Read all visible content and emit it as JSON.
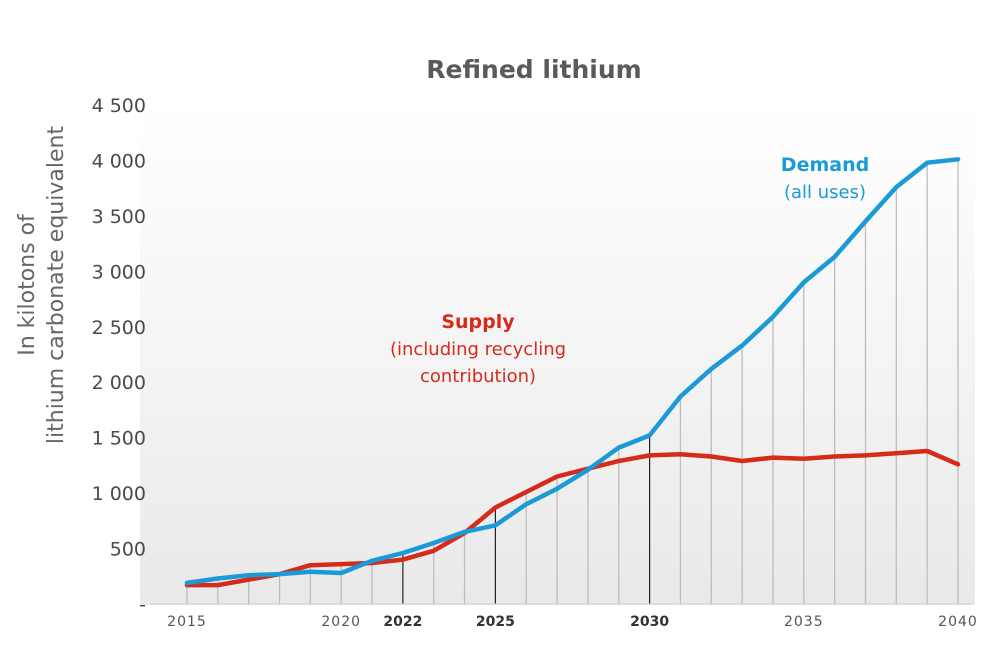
{
  "chart_data": {
    "type": "line",
    "title": "Refined lithium",
    "ylabel_lines": [
      "In kilotons of",
      "lithium carbonate equivalent"
    ],
    "ylim": [
      0,
      4500
    ],
    "yticks": [
      {
        "value": 0,
        "label": "-"
      },
      {
        "value": 500,
        "label": "500"
      },
      {
        "value": 1000,
        "label": "1 000"
      },
      {
        "value": 1500,
        "label": "1 500"
      },
      {
        "value": 2000,
        "label": "2 000"
      },
      {
        "value": 2500,
        "label": "2 500"
      },
      {
        "value": 3000,
        "label": "3 000"
      },
      {
        "value": 3500,
        "label": "3 500"
      },
      {
        "value": 4000,
        "label": "4 000"
      },
      {
        "value": 4500,
        "label": "4 500"
      }
    ],
    "xlim": [
      2015,
      2040
    ],
    "xticks": [
      {
        "value": 2015,
        "label": "2015",
        "bold": false
      },
      {
        "value": 2020,
        "label": "2020",
        "bold": false
      },
      {
        "value": 2022,
        "label": "2022",
        "bold": true
      },
      {
        "value": 2025,
        "label": "2025",
        "bold": true
      },
      {
        "value": 2030,
        "label": "2030",
        "bold": true
      },
      {
        "value": 2035,
        "label": "2035",
        "bold": false
      },
      {
        "value": 2040,
        "label": "2040",
        "bold": false
      }
    ],
    "highlight_years": [
      2022,
      2025,
      2030
    ],
    "x": [
      2015,
      2016,
      2017,
      2018,
      2019,
      2020,
      2021,
      2022,
      2023,
      2024,
      2025,
      2026,
      2027,
      2028,
      2029,
      2030,
      2031,
      2032,
      2033,
      2034,
      2035,
      2036,
      2037,
      2038,
      2039,
      2040
    ],
    "series": [
      {
        "name": "Demand",
        "note": "(all uses)",
        "color": "#1a9ad6",
        "values": [
          190,
          230,
          260,
          270,
          290,
          280,
          390,
          460,
          550,
          650,
          710,
          900,
          1040,
          1210,
          1410,
          1520,
          1870,
          2120,
          2330,
          2590,
          2900,
          3130,
          3450,
          3760,
          3980,
          4010
        ]
      },
      {
        "name": "Supply",
        "note": "(including recycling contribution)",
        "color": "#d42b1a",
        "values": [
          170,
          170,
          220,
          270,
          350,
          360,
          370,
          400,
          480,
          640,
          870,
          1010,
          1150,
          1220,
          1290,
          1340,
          1350,
          1330,
          1290,
          1320,
          1310,
          1330,
          1340,
          1360,
          1380,
          1260
        ]
      }
    ]
  }
}
